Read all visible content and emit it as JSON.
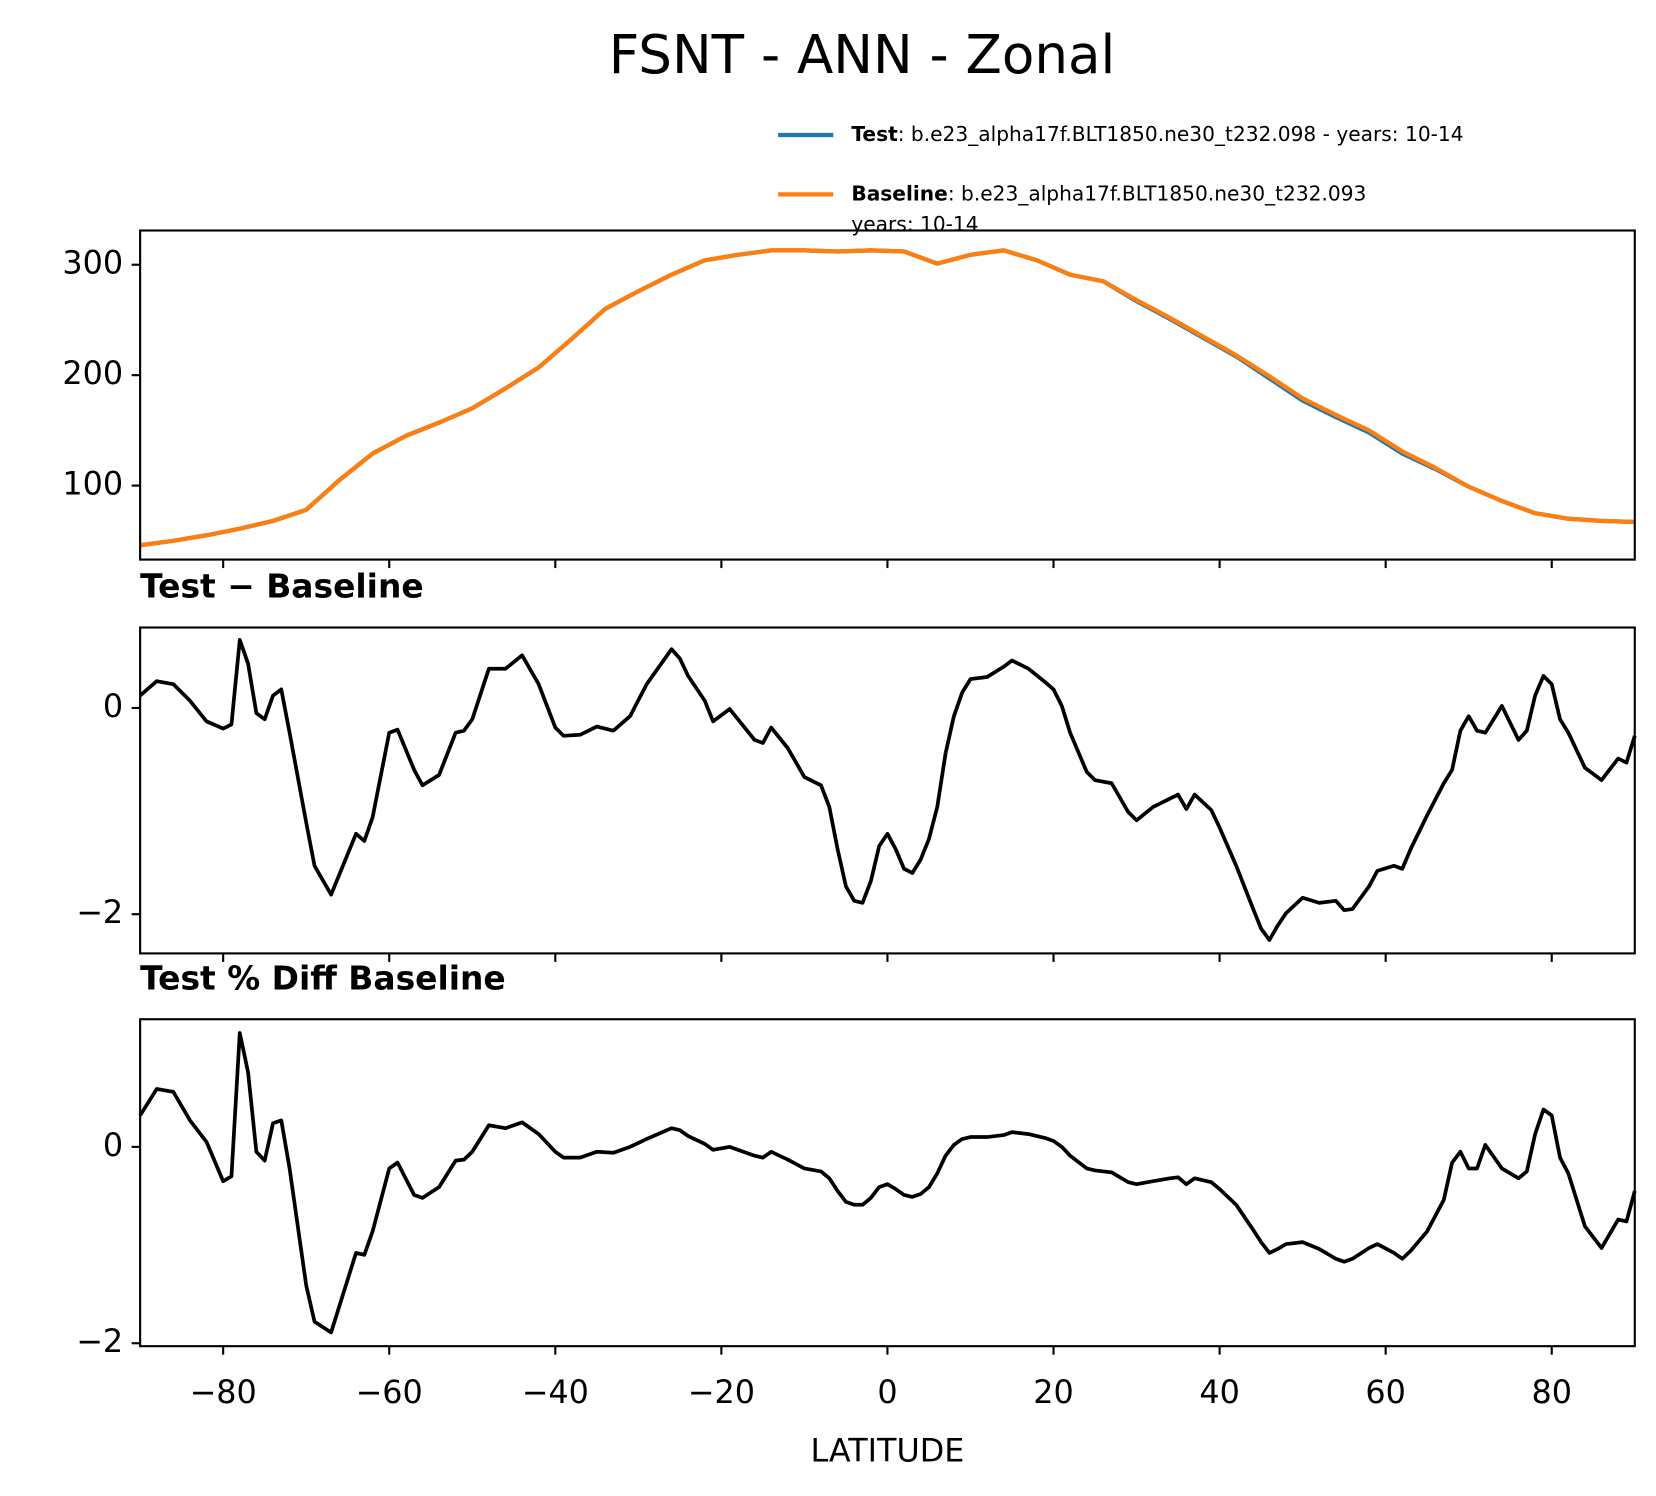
{
  "title": "FSNT - ANN - Zonal",
  "chart_data": [
    {
      "type": "line",
      "legend": "upper right",
      "x": [
        -90,
        -86,
        -82,
        -78,
        -74,
        -70,
        -66,
        -62,
        -58,
        -54,
        -50,
        -46,
        -42,
        -38,
        -34,
        -30,
        -26,
        -22,
        -18,
        -14,
        -10,
        -6,
        -2,
        2,
        6,
        10,
        14,
        18,
        22,
        26,
        30,
        34,
        38,
        42,
        46,
        50,
        54,
        58,
        62,
        66,
        70,
        74,
        78,
        82,
        86,
        90
      ],
      "series": [
        {
          "name": "Test",
          "label": [
            ": b.e23_alpha17f.BLT1850.ne30_t232.098 - years: 10-14"
          ],
          "color": "#1f77b4",
          "values": [
            46,
            50,
            55,
            61,
            68,
            78,
            105,
            129,
            145,
            157,
            170,
            188,
            207,
            233,
            260,
            276,
            291,
            304,
            309,
            313,
            313,
            312,
            313,
            312,
            301,
            309,
            313,
            304,
            291,
            285,
            267,
            251,
            234,
            217,
            197,
            177,
            162,
            148,
            129,
            115,
            99,
            86,
            75,
            70,
            68,
            67
          ]
        },
        {
          "name": "Baseline",
          "label": [
            ": b.e23_alpha17f.BLT1850.ne30_t232.093",
            "years: 10-14"
          ],
          "color": "#ff7f0e",
          "values": [
            46,
            50,
            55,
            61,
            68,
            78,
            105,
            129,
            145,
            157,
            170,
            188,
            207,
            233,
            260,
            276,
            291,
            304,
            309,
            313,
            313,
            312,
            313,
            312,
            301,
            309,
            313,
            304,
            291,
            285,
            268,
            252,
            235,
            218,
            199,
            179,
            164,
            150,
            131,
            116,
            99,
            86,
            75,
            70,
            68,
            67
          ]
        }
      ],
      "xlim": [
        -90,
        90
      ],
      "xticks": [
        -80,
        -60,
        -40,
        -20,
        0,
        20,
        40,
        60,
        80
      ],
      "ylim": [
        33,
        331
      ],
      "yticks": [
        100,
        200,
        300
      ]
    },
    {
      "type": "line",
      "title": "Test − Baseline",
      "x": [
        -90,
        -88,
        -86,
        -84,
        -82,
        -80,
        -79,
        -78,
        -77,
        -76,
        -75,
        -74,
        -73,
        -72,
        -70,
        -69,
        -67,
        -64,
        -63,
        -62,
        -60,
        -59,
        -57,
        -56,
        -54,
        -52,
        -51,
        -50,
        -48,
        -46,
        -44,
        -42,
        -40,
        -39,
        -37,
        -35,
        -33,
        -31,
        -29,
        -26,
        -25,
        -24,
        -22,
        -21,
        -19,
        -16,
        -15,
        -14,
        -12,
        -10,
        -8,
        -7,
        -6,
        -5,
        -4,
        -3,
        -2,
        -1,
        0,
        1,
        2,
        3,
        4,
        5,
        6,
        7,
        8,
        9,
        10,
        12,
        14,
        15,
        17,
        19,
        20,
        21,
        22,
        24,
        25,
        27,
        29,
        30,
        32,
        34,
        35,
        36,
        37,
        39,
        40,
        42,
        44,
        45,
        46,
        47,
        48,
        50,
        52,
        54,
        55,
        56,
        58,
        59,
        61,
        62,
        63,
        65,
        67,
        68,
        69,
        70,
        71,
        72,
        74,
        76,
        77,
        78,
        79,
        80,
        81,
        82,
        84,
        86,
        88,
        89,
        90
      ],
      "color": "#000000",
      "values": [
        0.12,
        0.26,
        0.23,
        0.07,
        -0.13,
        -0.2,
        -0.16,
        0.66,
        0.43,
        -0.05,
        -0.11,
        0.12,
        0.18,
        -0.24,
        -1.11,
        -1.53,
        -1.81,
        -1.22,
        -1.29,
        -1.06,
        -0.24,
        -0.21,
        -0.6,
        -0.75,
        -0.65,
        -0.24,
        -0.22,
        -0.11,
        0.38,
        0.38,
        0.51,
        0.23,
        -0.19,
        -0.27,
        -0.26,
        -0.18,
        -0.22,
        -0.08,
        0.23,
        0.57,
        0.48,
        0.31,
        0.07,
        -0.13,
        -0.01,
        -0.31,
        -0.34,
        -0.19,
        -0.39,
        -0.67,
        -0.75,
        -0.96,
        -1.37,
        -1.73,
        -1.87,
        -1.89,
        -1.68,
        -1.34,
        -1.22,
        -1.37,
        -1.56,
        -1.6,
        -1.47,
        -1.27,
        -0.96,
        -0.44,
        -0.08,
        0.15,
        0.28,
        0.3,
        0.4,
        0.46,
        0.38,
        0.25,
        0.18,
        0.02,
        -0.24,
        -0.62,
        -0.7,
        -0.73,
        -1.01,
        -1.09,
        -0.96,
        -0.88,
        -0.84,
        -0.98,
        -0.84,
        -0.99,
        -1.16,
        -1.53,
        -1.94,
        -2.14,
        -2.25,
        -2.11,
        -1.99,
        -1.84,
        -1.89,
        -1.87,
        -1.96,
        -1.95,
        -1.73,
        -1.58,
        -1.53,
        -1.56,
        -1.37,
        -1.04,
        -0.73,
        -0.6,
        -0.22,
        -0.08,
        -0.22,
        -0.24,
        0.02,
        -0.31,
        -0.22,
        0.12,
        0.31,
        0.23,
        -0.11,
        -0.24,
        -0.58,
        -0.7,
        -0.49,
        -0.53,
        -0.27
      ],
      "xlim": [
        -90,
        90
      ],
      "xticks": [
        -80,
        -60,
        -40,
        -20,
        0,
        20,
        40,
        60,
        80
      ],
      "ylim": [
        -2.38,
        0.78
      ],
      "yticks": [
        {
          "value": -2,
          "label": "−2"
        },
        0
      ]
    },
    {
      "type": "line",
      "title": "Test % Diff Baseline",
      "xlabel": "LATITUDE",
      "x": [
        -90,
        -88,
        -86,
        -84,
        -82,
        -80,
        -79,
        -78,
        -77,
        -76,
        -75,
        -74,
        -73,
        -72,
        -70,
        -69,
        -67,
        -64,
        -63,
        -62,
        -60,
        -59,
        -57,
        -56,
        -54,
        -52,
        -51,
        -50,
        -48,
        -46,
        -44,
        -42,
        -40,
        -39,
        -37,
        -35,
        -33,
        -31,
        -29,
        -26,
        -25,
        -24,
        -22,
        -21,
        -19,
        -16,
        -15,
        -14,
        -12,
        -10,
        -8,
        -7,
        -6,
        -5,
        -4,
        -3,
        -2,
        -1,
        0,
        1,
        2,
        3,
        4,
        5,
        6,
        7,
        8,
        9,
        10,
        12,
        14,
        15,
        17,
        19,
        20,
        21,
        22,
        24,
        25,
        27,
        29,
        30,
        32,
        34,
        35,
        36,
        37,
        39,
        40,
        42,
        44,
        45,
        46,
        47,
        48,
        50,
        52,
        54,
        55,
        56,
        58,
        59,
        61,
        62,
        63,
        65,
        67,
        68,
        69,
        70,
        71,
        72,
        74,
        76,
        77,
        78,
        79,
        80,
        81,
        82,
        84,
        86,
        88,
        89,
        90
      ],
      "color": "#000000",
      "values": [
        0.32,
        0.59,
        0.56,
        0.27,
        0.05,
        -0.35,
        -0.3,
        1.16,
        0.76,
        -0.05,
        -0.14,
        0.24,
        0.27,
        -0.22,
        -1.41,
        -1.78,
        -1.89,
        -1.08,
        -1.1,
        -0.86,
        -0.22,
        -0.16,
        -0.49,
        -0.52,
        -0.41,
        -0.14,
        -0.13,
        -0.05,
        0.22,
        0.19,
        0.25,
        0.13,
        -0.05,
        -0.11,
        -0.11,
        -0.05,
        -0.06,
        0.0,
        0.08,
        0.19,
        0.17,
        0.11,
        0.03,
        -0.03,
        0.0,
        -0.09,
        -0.11,
        -0.05,
        -0.13,
        -0.22,
        -0.25,
        -0.32,
        -0.45,
        -0.56,
        -0.59,
        -0.59,
        -0.52,
        -0.41,
        -0.38,
        -0.43,
        -0.49,
        -0.51,
        -0.48,
        -0.41,
        -0.27,
        -0.09,
        0.02,
        0.08,
        0.1,
        0.1,
        0.12,
        0.15,
        0.13,
        0.09,
        0.06,
        0.0,
        -0.09,
        -0.22,
        -0.24,
        -0.26,
        -0.36,
        -0.38,
        -0.35,
        -0.32,
        -0.31,
        -0.38,
        -0.32,
        -0.36,
        -0.43,
        -0.59,
        -0.84,
        -0.97,
        -1.08,
        -1.04,
        -0.99,
        -0.97,
        -1.04,
        -1.14,
        -1.17,
        -1.14,
        -1.03,
        -0.99,
        -1.08,
        -1.14,
        -1.06,
        -0.86,
        -0.54,
        -0.16,
        -0.05,
        -0.22,
        -0.22,
        0.02,
        -0.22,
        -0.32,
        -0.25,
        0.13,
        0.38,
        0.32,
        -0.11,
        -0.27,
        -0.81,
        -1.03,
        -0.74,
        -0.76,
        -0.45
      ],
      "xlim": [
        -90,
        90
      ],
      "xticks": [
        {
          "value": -80,
          "label": "−80"
        },
        {
          "value": -60,
          "label": "−60"
        },
        {
          "value": -40,
          "label": "−40"
        },
        {
          "value": -20,
          "label": "−20"
        },
        0,
        20,
        40,
        60,
        80
      ],
      "ylim": [
        -2.03,
        1.3
      ],
      "yticks": [
        {
          "value": -2,
          "label": "−2"
        },
        0
      ]
    }
  ]
}
